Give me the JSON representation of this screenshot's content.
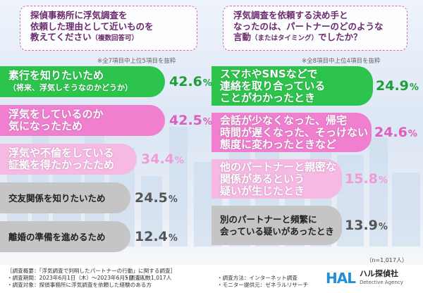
{
  "chart_data": [
    {
      "type": "bar",
      "title": "探偵事務所に浮気調査を依頼した理由として近いものを教えてください",
      "title_note": "（複数回答可）",
      "note": "※全7項目中上位5項目を抜粋",
      "categories": [
        "素行を知りたいため（将来、浮気しそうなのかどうか）",
        "浮気をしているのか気になったため",
        "浮気や不倫をしている証拠を得たかったため",
        "交友関係を知りたいため",
        "離婚の準備を進めるため"
      ],
      "values": [
        42.6,
        42.5,
        34.4,
        24.5,
        12.4
      ],
      "unit": "%"
    },
    {
      "type": "bar",
      "title": "浮気調査を依頼する決め手となったのは、パートナーのどのような言動（またはタイミング）でしたか？",
      "note": "※全8項目中上位4項目を抜粋",
      "categories": [
        "スマホやSNSなどで連絡を取り合っていることがわかったとき",
        "会話が少なくなった、帰宅時間が遅くなった、そっけない態度に変わったときなど",
        "他のパートナーと親密な関係があるという疑いが生じたとき",
        "別のパートナーと頻繁に会っている疑いがあったとき"
      ],
      "values": [
        24.9,
        24.6,
        15.8,
        13.9
      ],
      "unit": "%"
    }
  ],
  "left": {
    "title_lines": [
      "探偵事務所に浮気調査を",
      "依頼した理由として近いものを"
    ],
    "title_last": "教えてください",
    "title_small": "（複数回答可）",
    "note": "※全7項目中上位5項目を抜粋",
    "bars": [
      {
        "line1": "素行を知りたいため",
        "line2": "（将来、浮気しそうなのかどうか）",
        "value": "42.6",
        "unit": "%"
      },
      {
        "line1": "浮気をしているのか",
        "line2": "気になったため",
        "value": "42.5",
        "unit": "%"
      },
      {
        "line1": "浮気や不倫をしている",
        "line2": "証拠を得たかったため",
        "value": "34.4",
        "unit": "%"
      },
      {
        "line1": "交友関係を知りたいため",
        "line2": "",
        "value": "24.5",
        "unit": "%"
      },
      {
        "line1": "離婚の準備を進めるため",
        "line2": "",
        "value": "12.4",
        "unit": "%"
      }
    ]
  },
  "right": {
    "title_lines": [
      "浮気調査を依頼する決め手と",
      "なったのは、パートナーのどのような"
    ],
    "title_last": "言動",
    "title_small": "（またはタイミング）",
    "title_end": "でしたか？",
    "note": "※全8項目中上位4項目を抜粋",
    "bars": [
      {
        "line1": "スマホやSNSなどで",
        "line2": "連絡を取り合っている",
        "line3": "ことがわかったとき",
        "value": "24.9",
        "unit": "%"
      },
      {
        "line1": "会話が少なくなった、帰宅",
        "line2": "時間が遅くなった、そっけない",
        "line3": "態度に変わったときなど",
        "value": "24.6",
        "unit": "%"
      },
      {
        "line1": "他のパートナーと親密な",
        "line2": "関係があるという",
        "line3": "疑いが生じたとき",
        "value": "15.8",
        "unit": "%"
      },
      {
        "line1": "別のパートナーと頻繁に",
        "line2": "会っている疑いがあったとき",
        "line3": "",
        "value": "13.9",
        "unit": "%"
      }
    ]
  },
  "n_note": "（n=1,017人）",
  "footer": {
    "line1": "［調査概要：「浮気調査で判明したパートナーの行動」に関する調査］",
    "line2": "・調査期間：2023年6月1日（木）～2023年6月5日（月）",
    "line3": "・調査対象：探偵事務所に浮気調査を依頼した経験のある方",
    "count": "・調査人数1,017人",
    "method": "・調査方法：インターネット調査",
    "provider": "・モニター提供元：ゼネラルリサーチ"
  },
  "logo": {
    "mark": "HAL",
    "name_jp": "ハル探偵社",
    "name_en": "Detective Agency"
  },
  "colors": {
    "green": "#2cc44c",
    "pink": "#f07fd0",
    "lightpink": "#f6b9e4",
    "gray": "#c5c5c5",
    "title": "#6b2a6c"
  }
}
